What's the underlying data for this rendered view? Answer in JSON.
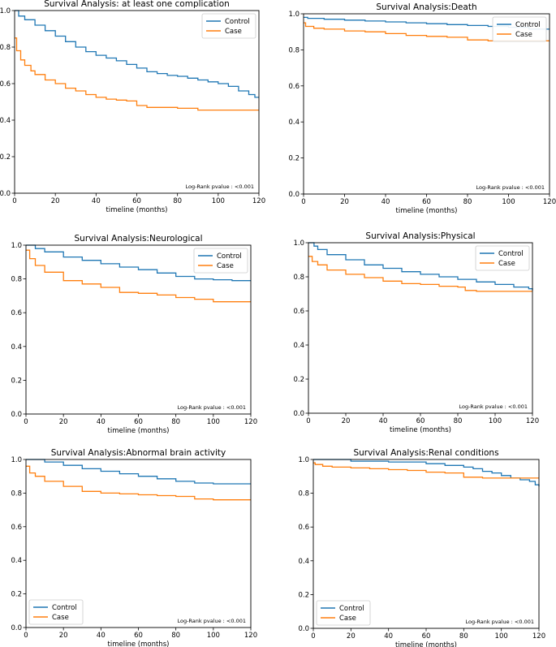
{
  "chart_data": [
    {
      "type": "line",
      "title": "Survival Analysis: at least one complication",
      "xlabel": "timeline (months)",
      "ylabel": "",
      "xlim": [
        0,
        120
      ],
      "ylim": [
        0,
        1.0
      ],
      "xticks": [
        "0",
        "20",
        "40",
        "60",
        "80",
        "100",
        "120"
      ],
      "yticks": [
        "0.0",
        "0.2",
        "0.4",
        "0.6",
        "0.8",
        "1.0"
      ],
      "legend_position": "top-right",
      "annotation": "Log-Rank pvalue : <0.001",
      "series": [
        {
          "name": "Control",
          "color": "#1f77b4",
          "x": [
            0,
            2,
            5,
            10,
            15,
            20,
            25,
            30,
            35,
            40,
            45,
            50,
            55,
            60,
            65,
            70,
            75,
            80,
            85,
            90,
            95,
            100,
            105,
            110,
            115,
            118,
            120
          ],
          "y": [
            1.0,
            0.97,
            0.95,
            0.92,
            0.89,
            0.86,
            0.83,
            0.8,
            0.775,
            0.755,
            0.74,
            0.725,
            0.705,
            0.685,
            0.665,
            0.655,
            0.645,
            0.64,
            0.63,
            0.62,
            0.61,
            0.6,
            0.585,
            0.56,
            0.54,
            0.525,
            0.525
          ]
        },
        {
          "name": "Case",
          "color": "#ff7f0e",
          "x": [
            0,
            1,
            3,
            5,
            8,
            10,
            15,
            20,
            25,
            30,
            35,
            40,
            45,
            50,
            55,
            60,
            65,
            70,
            80,
            90,
            100,
            110,
            120
          ],
          "y": [
            0.85,
            0.78,
            0.73,
            0.7,
            0.67,
            0.65,
            0.62,
            0.6,
            0.575,
            0.56,
            0.54,
            0.525,
            0.515,
            0.51,
            0.505,
            0.48,
            0.47,
            0.47,
            0.465,
            0.455,
            0.455,
            0.455,
            0.455
          ]
        }
      ]
    },
    {
      "type": "line",
      "title": "Survival Analysis:Death",
      "xlabel": "timeline (months)",
      "ylabel": "",
      "xlim": [
        0,
        120
      ],
      "ylim": [
        0,
        1.0
      ],
      "xticks": [
        "0",
        "20",
        "40",
        "60",
        "80",
        "100",
        "120"
      ],
      "yticks": [
        "0.0",
        "0.2",
        "0.4",
        "0.6",
        "0.8",
        "1.0"
      ],
      "legend_position": "top-right",
      "annotation": "Log-Rank pvalue : <0.001",
      "series": [
        {
          "name": "Control",
          "color": "#1f77b4",
          "x": [
            0,
            2,
            5,
            10,
            20,
            30,
            40,
            50,
            60,
            70,
            80,
            90,
            100,
            110,
            120
          ],
          "y": [
            0.98,
            0.975,
            0.975,
            0.97,
            0.965,
            0.96,
            0.955,
            0.95,
            0.945,
            0.94,
            0.935,
            0.93,
            0.925,
            0.915,
            0.915
          ]
        },
        {
          "name": "Case",
          "color": "#ff7f0e",
          "x": [
            0,
            1,
            5,
            10,
            20,
            30,
            40,
            50,
            60,
            70,
            80,
            90,
            100,
            110,
            120
          ],
          "y": [
            0.95,
            0.93,
            0.92,
            0.915,
            0.905,
            0.9,
            0.89,
            0.88,
            0.875,
            0.87,
            0.855,
            0.85,
            0.85,
            0.85,
            0.85
          ]
        }
      ]
    },
    {
      "type": "line",
      "title": "Survival Analysis:Neurological",
      "xlabel": "timeline (months)",
      "ylabel": "",
      "xlim": [
        0,
        120
      ],
      "ylim": [
        0,
        1.0
      ],
      "xticks": [
        "0",
        "20",
        "40",
        "60",
        "80",
        "100",
        "120"
      ],
      "yticks": [
        "0.0",
        "0.2",
        "0.4",
        "0.6",
        "0.8",
        "1.0"
      ],
      "legend_position": "top-right",
      "annotation": "Log-Rank pvalue : <0.001",
      "series": [
        {
          "name": "Control",
          "color": "#1f77b4",
          "x": [
            0,
            5,
            10,
            20,
            30,
            40,
            50,
            60,
            70,
            80,
            90,
            100,
            110,
            120
          ],
          "y": [
            1.0,
            0.98,
            0.96,
            0.93,
            0.91,
            0.89,
            0.87,
            0.855,
            0.835,
            0.815,
            0.8,
            0.795,
            0.79,
            0.79
          ]
        },
        {
          "name": "Case",
          "color": "#ff7f0e",
          "x": [
            0,
            2,
            5,
            10,
            20,
            30,
            40,
            50,
            60,
            70,
            80,
            90,
            100,
            110,
            120
          ],
          "y": [
            0.97,
            0.92,
            0.88,
            0.84,
            0.79,
            0.77,
            0.75,
            0.72,
            0.715,
            0.705,
            0.69,
            0.68,
            0.665,
            0.665,
            0.665
          ]
        }
      ]
    },
    {
      "type": "line",
      "title": "Survival Analysis:Physical",
      "xlabel": "timeline (months)",
      "ylabel": "",
      "xlim": [
        0,
        120
      ],
      "ylim": [
        0,
        1.0
      ],
      "xticks": [
        "0",
        "20",
        "40",
        "60",
        "80",
        "100",
        "120"
      ],
      "yticks": [
        "0.0",
        "0.2",
        "0.4",
        "0.6",
        "0.8",
        "1.0"
      ],
      "legend_position": "top-right",
      "annotation": "Log-Rank pvalue : <0.001",
      "series": [
        {
          "name": "Control",
          "color": "#1f77b4",
          "x": [
            0,
            3,
            5,
            10,
            20,
            30,
            40,
            50,
            60,
            70,
            80,
            90,
            100,
            110,
            118,
            120
          ],
          "y": [
            1.0,
            0.98,
            0.96,
            0.93,
            0.9,
            0.87,
            0.85,
            0.83,
            0.815,
            0.8,
            0.785,
            0.77,
            0.755,
            0.74,
            0.73,
            0.72
          ]
        },
        {
          "name": "Case",
          "color": "#ff7f0e",
          "x": [
            0,
            2,
            5,
            10,
            20,
            30,
            40,
            50,
            60,
            70,
            80,
            84,
            90,
            100,
            110,
            120
          ],
          "y": [
            0.92,
            0.89,
            0.87,
            0.84,
            0.815,
            0.795,
            0.775,
            0.76,
            0.755,
            0.745,
            0.74,
            0.72,
            0.715,
            0.715,
            0.715,
            0.715
          ]
        }
      ]
    },
    {
      "type": "line",
      "title": "Survival Analysis:Abnormal brain activity",
      "xlabel": "timeline (months)",
      "ylabel": "",
      "xlim": [
        0,
        120
      ],
      "ylim": [
        0,
        1.0
      ],
      "xticks": [
        "0",
        "20",
        "40",
        "60",
        "80",
        "100",
        "120"
      ],
      "yticks": [
        "0.0",
        "0.2",
        "0.4",
        "0.6",
        "0.8",
        "1.0"
      ],
      "legend_position": "bottom-left",
      "annotation": "Log-Rank pvalue : <0.001",
      "series": [
        {
          "name": "Control",
          "color": "#1f77b4",
          "x": [
            0,
            10,
            20,
            30,
            40,
            50,
            60,
            70,
            80,
            90,
            100,
            110,
            120
          ],
          "y": [
            1.0,
            0.985,
            0.965,
            0.945,
            0.93,
            0.915,
            0.9,
            0.885,
            0.87,
            0.86,
            0.855,
            0.855,
            0.855
          ]
        },
        {
          "name": "Case",
          "color": "#ff7f0e",
          "x": [
            0,
            2,
            5,
            10,
            20,
            30,
            40,
            50,
            60,
            70,
            80,
            90,
            100,
            110,
            120
          ],
          "y": [
            0.96,
            0.92,
            0.9,
            0.87,
            0.84,
            0.81,
            0.8,
            0.795,
            0.79,
            0.785,
            0.78,
            0.765,
            0.76,
            0.76,
            0.76
          ]
        }
      ]
    },
    {
      "type": "line",
      "title": "Survival Analysis:Renal conditions",
      "xlabel": "timeline (months)",
      "ylabel": "",
      "xlim": [
        0,
        120
      ],
      "ylim": [
        0,
        1.0
      ],
      "xticks": [
        "0",
        "20",
        "40",
        "60",
        "80",
        "100",
        "120"
      ],
      "yticks": [
        "0.0",
        "0.2",
        "0.4",
        "0.6",
        "0.8",
        "1.0"
      ],
      "legend_position": "bottom-left",
      "annotation": "Log-Rank pvalue : <0.001",
      "series": [
        {
          "name": "Control",
          "color": "#1f77b4",
          "x": [
            0,
            20,
            40,
            60,
            70,
            80,
            85,
            90,
            95,
            100,
            105,
            110,
            115,
            118,
            120
          ],
          "y": [
            1.0,
            0.99,
            0.985,
            0.975,
            0.965,
            0.955,
            0.945,
            0.93,
            0.92,
            0.905,
            0.89,
            0.88,
            0.87,
            0.85,
            0.84
          ]
        },
        {
          "name": "Case",
          "color": "#ff7f0e",
          "x": [
            0,
            1,
            5,
            10,
            20,
            30,
            40,
            50,
            60,
            70,
            80,
            90,
            100,
            110,
            120
          ],
          "y": [
            0.98,
            0.97,
            0.96,
            0.955,
            0.95,
            0.945,
            0.94,
            0.935,
            0.925,
            0.92,
            0.895,
            0.89,
            0.89,
            0.89,
            0.89
          ]
        }
      ]
    }
  ]
}
